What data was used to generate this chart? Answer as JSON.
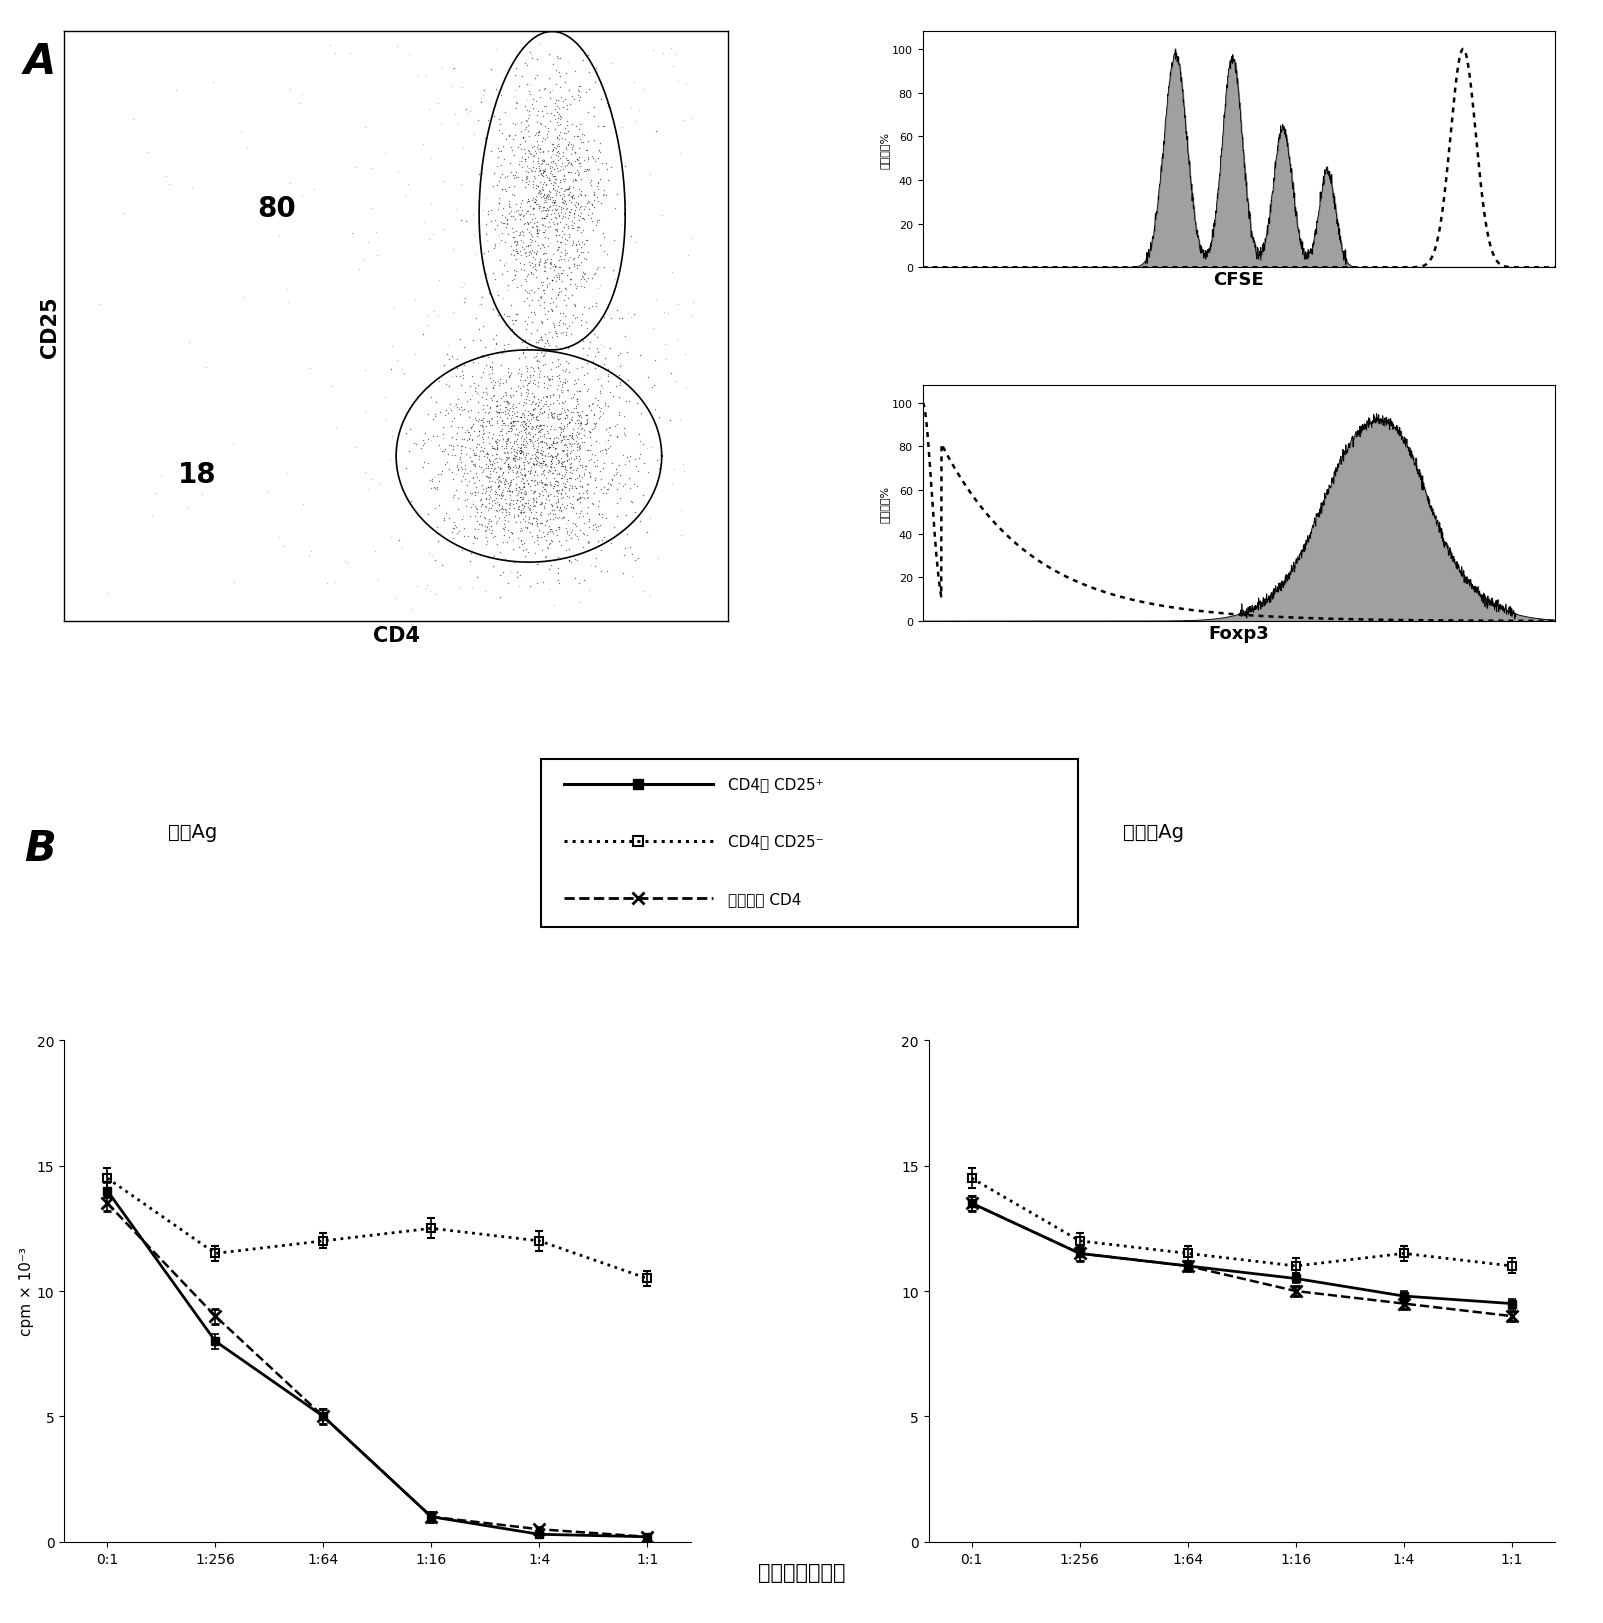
{
  "panel_A_label": "A",
  "panel_B_label": "B",
  "scatter_label_80": "80",
  "scatter_label_18": "18",
  "scatter_xlabel": "CD4",
  "scatter_ylabel": "CD25",
  "cfse_xlabel": "CFSE",
  "foxp3_xlabel": "Foxp3",
  "hist_ylabel": "最大值的%",
  "hist_yticks": [
    0,
    20,
    40,
    60,
    80,
    100
  ],
  "target_ag_label": "目标Ag",
  "third_party_ag_label": "第三方Ag",
  "xlabel_bottom": "抑制者：应答者",
  "ylabel_graph": "cpm × 10⁻³",
  "xtick_labels": [
    "0:1",
    "1:256",
    "1:64",
    "1:16",
    "1:4",
    "1:1"
  ],
  "ylim_graph": [
    0,
    20
  ],
  "yticks_graph": [
    0,
    5,
    10,
    15,
    20
  ],
  "legend_line1": "CD4高 CD25⁺",
  "legend_line2": "CD4中 CD25⁻",
  "legend_line3": "未分选的 CD4",
  "left_cd4high_cd25pos": [
    14.0,
    8.0,
    5.0,
    1.0,
    0.3,
    0.2
  ],
  "left_cd4mid_cd25neg": [
    14.5,
    11.5,
    12.0,
    12.5,
    12.0,
    10.5
  ],
  "left_unsorted_cd4": [
    13.5,
    9.0,
    5.0,
    1.0,
    0.5,
    0.2
  ],
  "left_cd4high_err": [
    0.3,
    0.3,
    0.3,
    0.2,
    0.1,
    0.1
  ],
  "left_cd4mid_err": [
    0.4,
    0.3,
    0.3,
    0.4,
    0.4,
    0.3
  ],
  "left_unsorted_err": [
    0.3,
    0.3,
    0.3,
    0.2,
    0.1,
    0.1
  ],
  "right_cd4high_cd25pos": [
    13.5,
    11.5,
    11.0,
    10.5,
    9.8,
    9.5
  ],
  "right_cd4mid_cd25neg": [
    14.5,
    12.0,
    11.5,
    11.0,
    11.5,
    11.0
  ],
  "right_unsorted_cd4": [
    13.5,
    11.5,
    11.0,
    10.0,
    9.5,
    9.0
  ],
  "right_cd4high_err": [
    0.3,
    0.3,
    0.2,
    0.2,
    0.2,
    0.2
  ],
  "right_cd4mid_err": [
    0.4,
    0.3,
    0.3,
    0.3,
    0.3,
    0.3
  ],
  "right_unsorted_err": [
    0.3,
    0.3,
    0.2,
    0.2,
    0.2,
    0.2
  ],
  "background_color": "#ffffff"
}
